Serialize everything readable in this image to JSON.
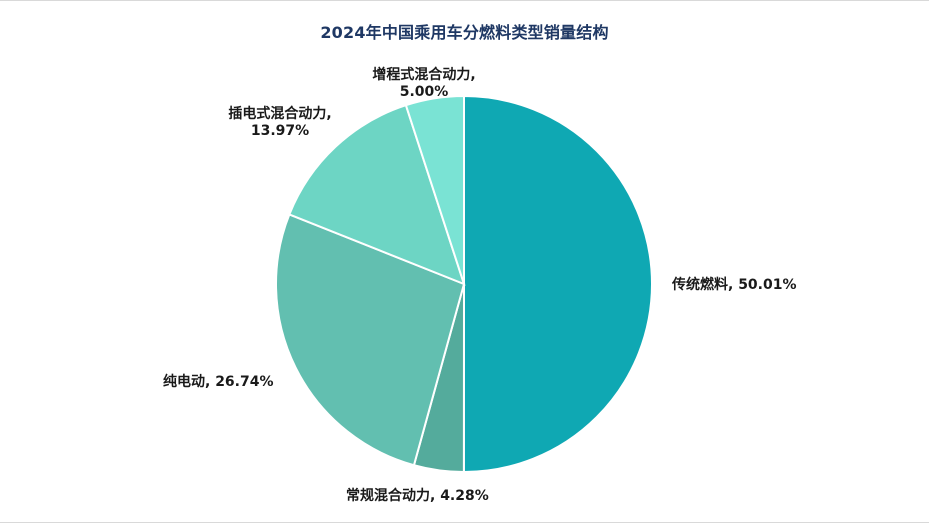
{
  "chart_data": {
    "type": "pie",
    "title": "2024年中国乘用车分燃料类型销量结构",
    "unit": "%",
    "slices": [
      {
        "name": "传统燃料",
        "value": 50.01,
        "label": "传统燃料, 50.01%",
        "color": "#0fa8b3"
      },
      {
        "name": "常规混合动力",
        "value": 4.28,
        "label": "常规混合动力, 4.28%",
        "color": "#54ab9c"
      },
      {
        "name": "纯电动",
        "value": 26.74,
        "label": "纯电动, 26.74%",
        "color": "#62bfb0"
      },
      {
        "name": "插电式混合动力",
        "value": 13.97,
        "label_lines": [
          "插电式混合动力,",
          "13.97%"
        ],
        "color": "#6dd5c4"
      },
      {
        "name": "增程式混合动力",
        "value": 5.0,
        "label_lines": [
          "增程式混合动力,",
          "5.00%"
        ],
        "color": "#7ae3d4"
      }
    ],
    "start": "12 o'clock",
    "direction": "clockwise",
    "legend": "none",
    "slice_border_color": "#ffffff"
  }
}
